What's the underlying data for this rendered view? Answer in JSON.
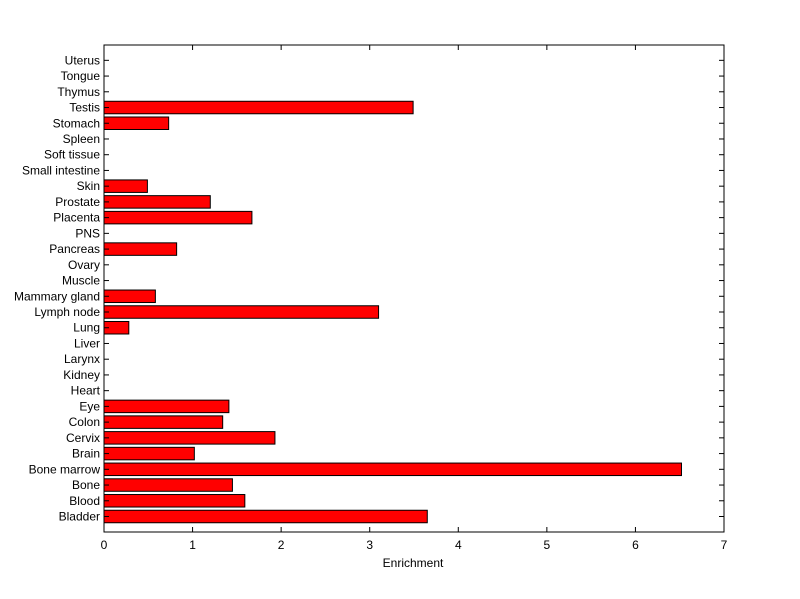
{
  "chart_data": {
    "type": "bar",
    "orientation": "horizontal",
    "xlabel": "Enrichment",
    "ylabel": "",
    "title": "",
    "xlim": [
      0,
      7
    ],
    "xticks": [
      0,
      1,
      2,
      3,
      4,
      5,
      6,
      7
    ],
    "grid": false,
    "legend": "none",
    "bar_color": "#ff0000",
    "bar_edge_color": "#000000",
    "categories": [
      "Bladder",
      "Blood",
      "Bone",
      "Bone marrow",
      "Brain",
      "Cervix",
      "Colon",
      "Eye",
      "Heart",
      "Kidney",
      "Larynx",
      "Liver",
      "Lung",
      "Lymph node",
      "Mammary gland",
      "Muscle",
      "Ovary",
      "Pancreas",
      "PNS",
      "Placenta",
      "Prostate",
      "Skin",
      "Small intestine",
      "Soft tissue",
      "Spleen",
      "Stomach",
      "Testis",
      "Thymus",
      "Tongue",
      "Uterus"
    ],
    "values": [
      3.65,
      1.59,
      1.45,
      6.52,
      1.02,
      1.93,
      1.34,
      1.41,
      0,
      0,
      0,
      0,
      0.28,
      3.1,
      0.58,
      0,
      0,
      0.82,
      0,
      1.67,
      1.2,
      0.49,
      0,
      0,
      0,
      0.73,
      3.49,
      0,
      0,
      0
    ]
  }
}
